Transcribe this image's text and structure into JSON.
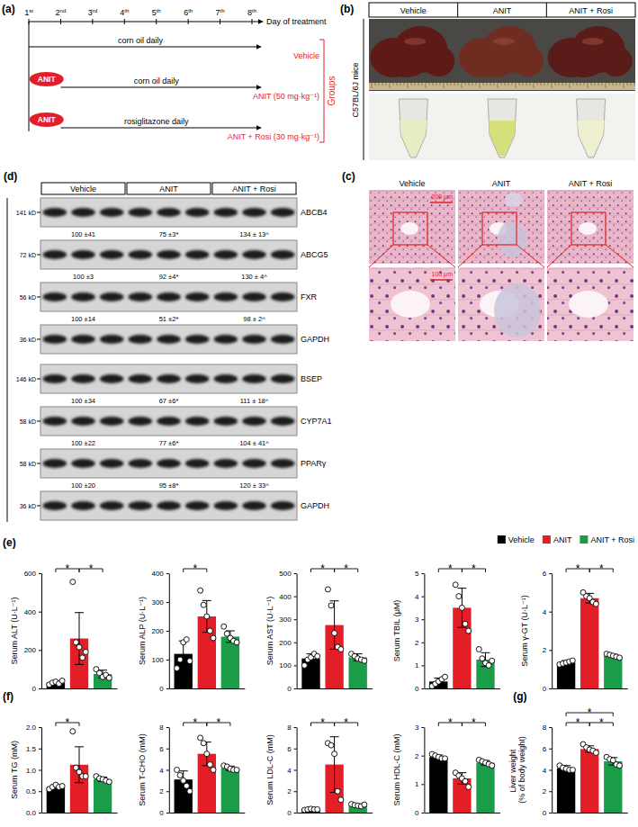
{
  "timeline": {
    "panel_label": "(a)",
    "days": [
      "1st",
      "2nd",
      "3rd",
      "4th",
      "5th",
      "6th",
      "7th",
      "8th"
    ],
    "day_label": "Day of treatment",
    "groups_label": "Groups",
    "rows": [
      {
        "treatment": "corn oil daily",
        "label": "Vehicle"
      },
      {
        "injection": "ANIT",
        "treatment": "corn oil daily",
        "label": "ANIT (50 mg·kg⁻¹)"
      },
      {
        "injection": "ANIT",
        "treatment": "rosiglitazone daily",
        "label": "ANIT + Rosi (30 mg·kg⁻¹)"
      }
    ]
  },
  "photos": {
    "panel_label": "(b)",
    "columns": [
      "Vehicle",
      "ANIT",
      "ANIT + Rosi"
    ],
    "side_label": "C57BL/6J mice"
  },
  "histology": {
    "panel_label": "(c)",
    "columns": [
      "Vehicle",
      "ANIT",
      "ANIT + Rosi"
    ],
    "scale_bars": [
      "200 μm",
      "100 μm"
    ]
  },
  "western_blot": {
    "panel_label": "(d)",
    "groups": [
      "Vehicle",
      "ANIT",
      "ANIT + Rosi"
    ],
    "blocks": [
      [
        {
          "protein": "ABCB4",
          "size": "141 kD",
          "quant": [
            "100 ±41",
            "75 ±3*",
            "134 ± 13^"
          ]
        },
        {
          "protein": "ABCG5",
          "size": "72 kD",
          "quant": [
            "100 ±3",
            "92 ±4*",
            "130 ± 4^"
          ]
        },
        {
          "protein": "FXR",
          "size": "56 kD",
          "quant": [
            "100 ±14",
            "51 ±2*",
            "98 ± 2^"
          ]
        },
        {
          "protein": "GAPDH",
          "size": "36 kD"
        }
      ],
      [
        {
          "protein": "BSEP",
          "size": "146 kD",
          "quant": [
            "100 ±34",
            "67 ±6*",
            "111 ± 18^"
          ]
        },
        {
          "protein": "CYP7A1",
          "size": "58 kD",
          "quant": [
            "100 ±22",
            "77 ±6*",
            "104 ± 41^"
          ]
        },
        {
          "protein": "PPARγ",
          "size": "58 kD",
          "quant": [
            "100 ±20",
            "95 ±8*",
            "120 ± 33^"
          ]
        },
        {
          "protein": "GAPDH",
          "size": "36 kD"
        }
      ]
    ]
  },
  "chart_data": [
    {
      "type": "bar",
      "panel_label": "(e)",
      "legend": "top-right",
      "tick_labels": "y",
      "y_label": "Serum ALT (U·L⁻¹)",
      "categories": [
        "Vehicle",
        "ANIT",
        "ANIT + Rosi"
      ],
      "colors": [
        "#000000",
        "#e41e26",
        "#1a9c48"
      ],
      "values": [
        30,
        260,
        75
      ],
      "errors": [
        10,
        135,
        20
      ],
      "points": [
        [
          20,
          30,
          35,
          25,
          40
        ],
        [
          555,
          240,
          215,
          160,
          190
        ],
        [
          100,
          80,
          60,
          70,
          55
        ]
      ],
      "ylim": [
        0,
        600
      ],
      "yticks": [
        0,
        200,
        400,
        600
      ],
      "significance": [
        {
          "from": 0,
          "to": 1,
          "label": "*"
        },
        {
          "from": 1,
          "to": 2,
          "label": "*"
        }
      ]
    },
    {
      "type": "bar",
      "tick_labels": "y",
      "y_label": "Serum ALP (U·L⁻¹)",
      "categories": [
        "Vehicle",
        "ANIT",
        "ANIT + Rosi"
      ],
      "colors": [
        "#000000",
        "#e41e26",
        "#1a9c48"
      ],
      "values": [
        120,
        250,
        180
      ],
      "errors": [
        45,
        55,
        20
      ],
      "points": [
        [
          70,
          100,
          160,
          170,
          95
        ],
        [
          340,
          290,
          250,
          200,
          175
        ],
        [
          215,
          190,
          175,
          165,
          160
        ]
      ],
      "ylim": [
        0,
        400
      ],
      "yticks": [
        0,
        100,
        200,
        300,
        400
      ],
      "significance": [
        {
          "from": 0,
          "to": 1,
          "label": "*"
        }
      ]
    },
    {
      "type": "bar",
      "tick_labels": "y",
      "y_label": "Serum AST (U·L⁻¹)",
      "categories": [
        "Vehicle",
        "ANIT",
        "ANIT + Rosi"
      ],
      "colors": [
        "#000000",
        "#e41e26",
        "#1a9c48"
      ],
      "values": [
        130,
        275,
        135
      ],
      "errors": [
        20,
        105,
        15
      ],
      "points": [
        [
          100,
          125,
          135,
          150,
          140
        ],
        [
          430,
          360,
          240,
          180,
          170
        ],
        [
          150,
          140,
          130,
          125,
          120
        ]
      ],
      "ylim": [
        0,
        500
      ],
      "yticks": [
        0,
        100,
        200,
        300,
        400,
        500
      ],
      "significance": [
        {
          "from": 0,
          "to": 1,
          "label": "*"
        },
        {
          "from": 1,
          "to": 2,
          "label": "*"
        }
      ]
    },
    {
      "type": "bar",
      "tick_labels": "y",
      "y_label": "Serum TBIL (μM)",
      "categories": [
        "Vehicle",
        "ANIT",
        "ANIT + Rosi"
      ],
      "colors": [
        "#000000",
        "#e41e26",
        "#1a9c48"
      ],
      "values": [
        0.3,
        3.5,
        1.25
      ],
      "errors": [
        0.15,
        0.85,
        0.3
      ],
      "points": [
        [
          0.1,
          0.2,
          0.3,
          0.4,
          0.5
        ],
        [
          4.5,
          4.0,
          3.5,
          2.8,
          2.5
        ],
        [
          1.7,
          1.3,
          1.1,
          1.0,
          1.2
        ]
      ],
      "ylim": [
        0,
        5
      ],
      "yticks": [
        0,
        1,
        2,
        3,
        4,
        5
      ],
      "significance": [
        {
          "from": 0,
          "to": 1,
          "label": "*"
        },
        {
          "from": 1,
          "to": 2,
          "label": "*"
        }
      ]
    },
    {
      "type": "bar",
      "tick_labels": "y",
      "y_label": "Serum γ-GT (U·L⁻¹)",
      "categories": [
        "Vehicle",
        "ANIT",
        "ANIT + Rosi"
      ],
      "colors": [
        "#000000",
        "#e41e26",
        "#1a9c48"
      ],
      "values": [
        1.35,
        4.7,
        1.7
      ],
      "errors": [
        0.1,
        0.25,
        0.08
      ],
      "points": [
        [
          1.25,
          1.3,
          1.35,
          1.4,
          1.45
        ],
        [
          5.0,
          4.8,
          4.7,
          4.5,
          4.4
        ],
        [
          1.8,
          1.75,
          1.7,
          1.65,
          1.6
        ]
      ],
      "ylim": [
        0,
        6
      ],
      "yticks": [
        0,
        2,
        4,
        6
      ],
      "significance": [
        {
          "from": 0,
          "to": 1,
          "label": "*"
        },
        {
          "from": 1,
          "to": 2,
          "label": "*"
        }
      ]
    },
    {
      "type": "bar",
      "panel_label": "(f)",
      "tick_labels": "y",
      "y_label": "Serum TG (mM)",
      "categories": [
        "Vehicle",
        "ANIT",
        "ANIT + Rosi"
      ],
      "colors": [
        "#000000",
        "#e41e26",
        "#1a9c48"
      ],
      "values": [
        0.6,
        1.12,
        0.78
      ],
      "errors": [
        0.05,
        0.42,
        0.05
      ],
      "points": [
        [
          0.55,
          0.6,
          0.65,
          0.6,
          0.62
        ],
        [
          1.9,
          1.05,
          0.95,
          0.85,
          0.85
        ],
        [
          0.85,
          0.8,
          0.78,
          0.75,
          0.72
        ]
      ],
      "ylim": [
        0,
        2
      ],
      "yticks": [
        {
          "value": 0,
          "label": "0.0"
        },
        0.5,
        {
          "value": 1,
          "label": "1.0"
        },
        1.5,
        {
          "value": 2,
          "label": "2.0"
        }
      ],
      "significance": [
        {
          "from": 0,
          "to": 1,
          "label": "*"
        }
      ]
    },
    {
      "type": "bar",
      "tick_labels": "y",
      "y_label": "Serum T-CHO (mM)",
      "categories": [
        "Vehicle",
        "ANIT",
        "ANIT + Rosi"
      ],
      "colors": [
        "#000000",
        "#e41e26",
        "#1a9c48"
      ],
      "values": [
        3.1,
        5.5,
        4.15
      ],
      "errors": [
        0.8,
        1.1,
        0.2
      ],
      "points": [
        [
          4.0,
          3.5,
          3.0,
          2.5,
          2.0
        ],
        [
          7.0,
          6.5,
          5.5,
          4.5,
          4.0
        ],
        [
          4.4,
          4.3,
          4.1,
          4.0,
          4.0
        ]
      ],
      "ylim": [
        0,
        8
      ],
      "yticks": [
        0,
        2,
        4,
        6,
        8
      ],
      "significance": [
        {
          "from": 0,
          "to": 1,
          "label": "*"
        },
        {
          "from": 1,
          "to": 2,
          "label": "*"
        }
      ]
    },
    {
      "type": "bar",
      "tick_labels": "y",
      "y_label": "Serum LDL-C (mM)",
      "categories": [
        "Vehicle",
        "ANIT",
        "ANIT + Rosi"
      ],
      "colors": [
        "#000000",
        "#e41e26",
        "#1a9c48"
      ],
      "values": [
        0.3,
        4.5,
        0.7
      ],
      "errors": [
        0.05,
        2.6,
        0.1
      ],
      "points": [
        [
          0.25,
          0.3,
          0.35,
          0.3,
          0.3
        ],
        [
          6.5,
          6.3,
          5.5,
          2.0,
          1.2
        ],
        [
          0.8,
          0.7,
          0.65,
          0.6,
          0.75
        ]
      ],
      "ylim": [
        0,
        8
      ],
      "yticks": [
        0,
        2,
        4,
        6,
        8
      ],
      "significance": [
        {
          "from": 0,
          "to": 1,
          "label": "*"
        },
        {
          "from": 1,
          "to": 2,
          "label": "*"
        }
      ]
    },
    {
      "type": "bar",
      "tick_labels": "y",
      "y_label": "Serum HDL-C (mM)",
      "categories": [
        "Vehicle",
        "ANIT",
        "ANIT + Rosi"
      ],
      "colors": [
        "#000000",
        "#e41e26",
        "#1a9c48"
      ],
      "values": [
        1.95,
        1.2,
        1.75
      ],
      "errors": [
        0.07,
        0.2,
        0.08
      ],
      "points": [
        [
          2.05,
          2.0,
          1.95,
          1.9,
          1.9
        ],
        [
          1.4,
          1.3,
          1.2,
          1.1,
          0.9
        ],
        [
          1.85,
          1.8,
          1.75,
          1.7,
          1.65
        ]
      ],
      "ylim": [
        0,
        3
      ],
      "yticks": [
        0,
        1,
        2,
        3
      ],
      "significance": [
        {
          "from": 0,
          "to": 1,
          "label": "*"
        },
        {
          "from": 1,
          "to": 2,
          "label": "*"
        }
      ]
    },
    {
      "type": "bar",
      "panel_label": "(g)",
      "tick_labels": "y",
      "y_label": "Liver weight (% of body weight)",
      "categories": [
        "Vehicle",
        "ANIT",
        "ANIT + Rosi"
      ],
      "colors": [
        "#000000",
        "#e41e26",
        "#1a9c48"
      ],
      "values": [
        4.15,
        5.95,
        4.8
      ],
      "errors": [
        0.25,
        0.3,
        0.35
      ],
      "points": [
        [
          4.4,
          4.2,
          4.1,
          4.0,
          4.0
        ],
        [
          6.4,
          6.1,
          5.9,
          5.8,
          5.6
        ],
        [
          5.2,
          5.0,
          4.9,
          4.5,
          4.4
        ]
      ],
      "ylim": [
        0,
        8
      ],
      "yticks": [
        0,
        2,
        4,
        6,
        8
      ],
      "significance": [
        {
          "from": 0,
          "to": 1,
          "label": "*"
        },
        {
          "from": 1,
          "to": 2,
          "label": "*"
        },
        {
          "from": 0,
          "to": 2,
          "label": "*"
        }
      ]
    }
  ]
}
